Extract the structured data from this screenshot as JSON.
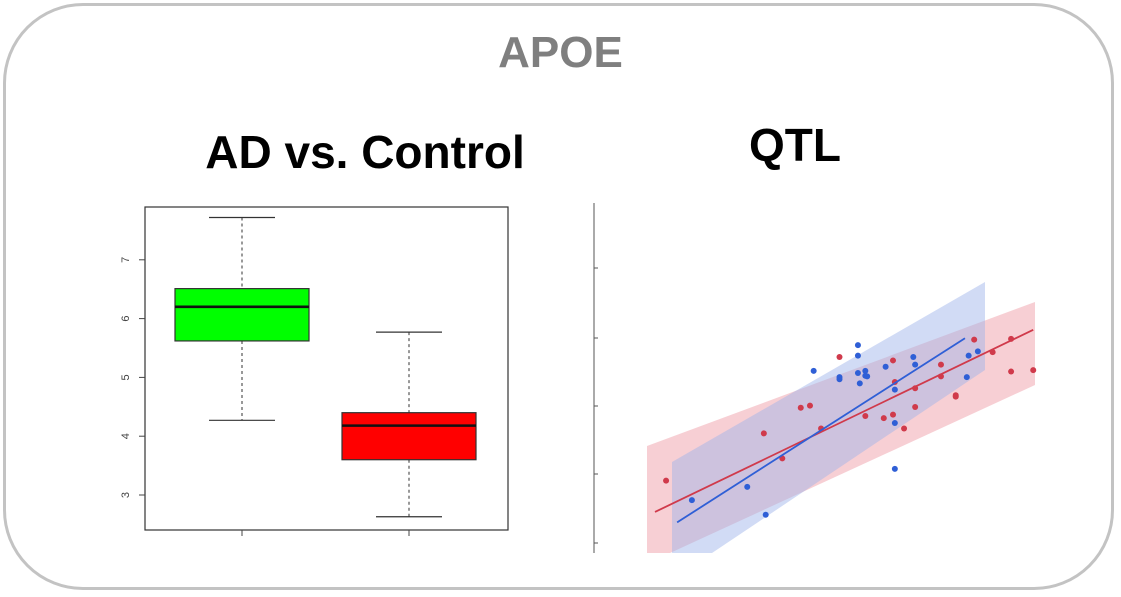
{
  "title": "APOE",
  "chart_data": [
    {
      "type": "box",
      "title": "AD vs. Control",
      "ylim": [
        2.6,
        7.8
      ],
      "yticks": [
        "3",
        "4",
        "5",
        "6",
        "7"
      ],
      "boxes": [
        {
          "min": 4.27,
          "q1": 5.62,
          "median": 6.2,
          "q3": 6.51,
          "max": 7.72,
          "color": "#00ff00"
        },
        {
          "min": 2.63,
          "q1": 3.6,
          "median": 4.18,
          "q3": 4.4,
          "max": 5.77,
          "color": "#ff0000"
        }
      ]
    },
    {
      "type": "scatter",
      "title": "QTL",
      "series": [
        {
          "color": "#d03a4b",
          "points": [
            [
              0.6,
              3.55
            ],
            [
              5.9,
              4.23
            ],
            [
              6.9,
              3.87
            ],
            [
              7.9,
              4.6
            ],
            [
              8.4,
              4.63
            ],
            [
              9.0,
              4.3
            ],
            [
              10.0,
              5.33
            ],
            [
              11.4,
              4.48
            ],
            [
              12.4,
              4.45
            ],
            [
              12.9,
              5.28
            ],
            [
              12.9,
              4.5
            ],
            [
              13.0,
              4.97
            ],
            [
              13.5,
              4.3
            ],
            [
              14.1,
              4.61
            ],
            [
              14.1,
              4.88
            ],
            [
              15.5,
              5.05
            ],
            [
              15.5,
              5.22
            ],
            [
              16.3,
              4.76
            ],
            [
              16.3,
              4.78
            ],
            [
              17.3,
              5.58
            ],
            [
              18.3,
              5.4
            ],
            [
              19.3,
              5.59
            ],
            [
              19.3,
              5.12
            ],
            [
              20.5,
              5.14
            ]
          ],
          "fit": [
            [
              0,
              3.1
            ],
            [
              20.5,
              5.72
            ]
          ]
        },
        {
          "color": "#2f5fd6",
          "points": [
            [
              2.0,
              3.27
            ],
            [
              5.0,
              3.46
            ],
            [
              6.0,
              3.06
            ],
            [
              8.6,
              5.13
            ],
            [
              10.0,
              5.01
            ],
            [
              10.0,
              5.04
            ],
            [
              11.0,
              5.1
            ],
            [
              11.0,
              5.35
            ],
            [
              11.0,
              5.5
            ],
            [
              11.1,
              4.95
            ],
            [
              11.4,
              5.06
            ],
            [
              11.4,
              5.13
            ],
            [
              11.5,
              5.05
            ],
            [
              12.5,
              5.19
            ],
            [
              13.0,
              3.72
            ],
            [
              13.0,
              4.38
            ],
            [
              13.0,
              4.86
            ],
            [
              14.0,
              5.33
            ],
            [
              14.1,
              5.22
            ],
            [
              16.9,
              5.04
            ],
            [
              17.0,
              5.35
            ],
            [
              17.5,
              5.41
            ]
          ],
          "fit": [
            [
              1.2,
              2.95
            ],
            [
              16.8,
              5.6
            ]
          ]
        }
      ]
    }
  ]
}
